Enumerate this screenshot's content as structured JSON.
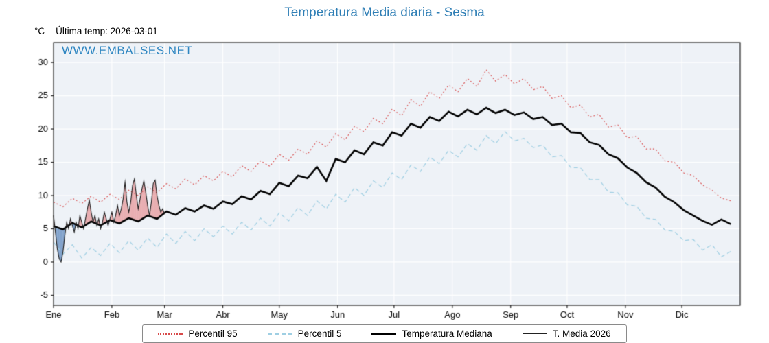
{
  "title": "Temperatura Media diaria - Sesma",
  "header": {
    "unit_label": "°C",
    "last_temp_label": "Última temp: 2026-03-01"
  },
  "watermark": "WWW.EMBALSES.NET",
  "colors": {
    "title_blue": "#2e7eb5",
    "watermark_blue": "#2e86c1",
    "p95_red": "#d84a4a",
    "p5_blue": "#9fcfe3",
    "median_black": "#000000",
    "t2026_black": "#1a1a1a",
    "fill_above": "rgba(226,90,90,0.45)",
    "fill_below": "rgba(58,110,175,0.60)"
  },
  "chart_data": {
    "type": "line",
    "title": "Temperatura Media diaria - Sesma",
    "xlabel": "",
    "ylabel": "°C",
    "x_tick_labels": [
      "Ene",
      "Feb",
      "Mar",
      "Abr",
      "May",
      "Jun",
      "Jul",
      "Ago",
      "Sep",
      "Oct",
      "Nov",
      "Dic"
    ],
    "month_start_days": [
      0,
      31,
      59,
      90,
      120,
      151,
      181,
      212,
      243,
      273,
      304,
      334
    ],
    "y_ticks": [
      -5,
      0,
      5,
      10,
      15,
      20,
      25,
      30
    ],
    "ylim": [
      -6.5,
      33
    ],
    "xlim": [
      0,
      365
    ],
    "sample_interval_days": 5,
    "plot_bg": "#eef2f7",
    "grid_color": "#ffffff",
    "axis_color": "#222222",
    "series": [
      {
        "name": "Percentil 95",
        "color": "#d84a4a",
        "style": "dotted",
        "values": [
          9.0,
          8.3,
          9.6,
          8.8,
          9.9,
          9.0,
          10.2,
          9.4,
          10.8,
          10.0,
          11.3,
          10.4,
          11.8,
          11.0,
          12.5,
          11.6,
          13.0,
          12.2,
          13.6,
          12.8,
          14.5,
          13.6,
          15.2,
          14.4,
          16.2,
          15.3,
          17.0,
          16.2,
          18.2,
          17.3,
          19.3,
          18.4,
          20.4,
          19.6,
          21.6,
          20.8,
          23.0,
          22.0,
          24.4,
          23.4,
          25.6,
          24.6,
          26.6,
          25.6,
          27.6,
          26.4,
          28.9,
          27.2,
          28.2,
          26.8,
          27.6,
          25.9,
          26.4,
          24.6,
          25.0,
          23.2,
          23.6,
          21.8,
          22.2,
          20.3,
          20.6,
          18.7,
          18.9,
          17.0,
          17.0,
          15.2,
          15.0,
          13.4,
          13.0,
          11.6,
          10.8,
          9.6,
          9.2
        ]
      },
      {
        "name": "Percentil 5",
        "color": "#9fcfe3",
        "style": "dashed",
        "values": [
          3.0,
          1.2,
          2.6,
          0.6,
          2.2,
          1.0,
          2.8,
          1.4,
          3.2,
          1.8,
          3.6,
          2.2,
          4.2,
          2.8,
          4.6,
          3.2,
          5.0,
          3.8,
          5.4,
          4.2,
          6.0,
          4.8,
          6.6,
          5.4,
          7.4,
          6.2,
          8.2,
          7.0,
          9.2,
          8.0,
          10.2,
          9.0,
          11.2,
          10.0,
          12.2,
          11.2,
          13.4,
          12.4,
          14.6,
          13.6,
          15.8,
          14.8,
          16.8,
          15.8,
          17.8,
          16.8,
          19.0,
          17.8,
          19.6,
          18.2,
          18.6,
          17.2,
          17.6,
          15.8,
          16.0,
          14.2,
          14.2,
          12.4,
          12.4,
          10.5,
          10.4,
          8.6,
          8.4,
          6.6,
          6.4,
          4.8,
          4.6,
          3.2,
          3.4,
          1.8,
          2.6,
          0.8,
          1.6
        ]
      },
      {
        "name": "Temperatura Mediana",
        "color": "#000000",
        "style": "solid-thick",
        "values": [
          5.4,
          4.9,
          5.9,
          5.2,
          6.1,
          5.5,
          6.3,
          5.8,
          6.6,
          6.1,
          7.0,
          6.5,
          7.6,
          7.1,
          8.1,
          7.6,
          8.5,
          8.0,
          9.1,
          8.7,
          9.9,
          9.4,
          10.7,
          10.2,
          11.9,
          11.4,
          13.0,
          12.6,
          14.3,
          12.2,
          15.5,
          15.0,
          16.8,
          16.2,
          18.0,
          17.5,
          19.5,
          19.0,
          20.8,
          20.2,
          21.8,
          21.2,
          22.6,
          21.9,
          22.9,
          22.2,
          23.2,
          22.4,
          22.9,
          22.1,
          22.5,
          21.5,
          21.8,
          20.6,
          20.8,
          19.5,
          19.4,
          18.0,
          17.6,
          16.2,
          15.6,
          14.2,
          13.4,
          12.0,
          11.2,
          9.8,
          9.0,
          7.8,
          7.0,
          6.2,
          5.6,
          6.4,
          5.7
        ]
      },
      {
        "name": "T. Media 2026",
        "color": "#1a1a1a",
        "style": "solid-thin",
        "interval_days": 1,
        "values": [
          7.0,
          4.5,
          2.0,
          0.5,
          0.0,
          1.5,
          4.0,
          6.0,
          5.0,
          6.5,
          5.5,
          4.5,
          6.0,
          5.0,
          7.0,
          6.0,
          5.0,
          6.5,
          8.0,
          9.3,
          7.5,
          6.0,
          7.0,
          5.5,
          6.5,
          5.0,
          6.0,
          7.5,
          6.5,
          5.5,
          6.5,
          7.5,
          6.0,
          7.0,
          8.5,
          7.0,
          8.0,
          9.5,
          12.0,
          9.0,
          7.5,
          9.0,
          11.5,
          12.5,
          10.0,
          8.0,
          9.5,
          11.0,
          12.2,
          10.5,
          8.5,
          7.0,
          9.0,
          11.8,
          12.3,
          10.0,
          8.5,
          7.5,
          8.0,
          7.2
        ]
      }
    ],
    "fills": {
      "above_color": "rgba(226,90,90,0.45)",
      "below_color": "rgba(58,110,175,0.60)",
      "compare_series": "Temperatura Mediana",
      "target_series": "T. Media 2026"
    },
    "legend_position": "bottom"
  }
}
